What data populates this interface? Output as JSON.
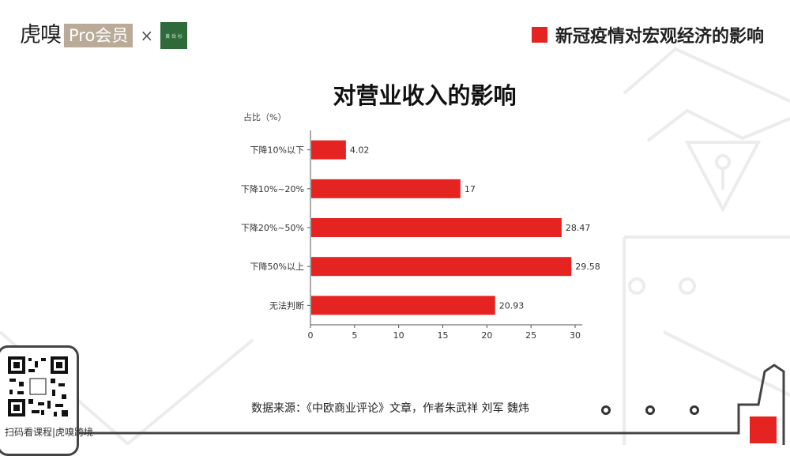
{
  "header": {
    "brand": "虎嗅",
    "badge": "Pro会员",
    "times": "×",
    "partner": "黄 岳 杉",
    "section_title": "新冠疫情对宏观经济的影响"
  },
  "chart_data": {
    "type": "bar",
    "orientation": "horizontal",
    "title": "对营业收入的影响",
    "ylabel": "占比（%）",
    "categories": [
      "下降10%以下",
      "下降10%~20%",
      "下降20%~50%",
      "下降50%以上",
      "无法判断"
    ],
    "values": [
      4.02,
      17,
      28.47,
      29.58,
      20.93
    ],
    "value_labels": [
      "4.02",
      "17",
      "28.47",
      "29.58",
      "20.93"
    ],
    "xlim": [
      0,
      30
    ],
    "xticks": [
      0,
      5,
      10,
      15,
      20,
      25,
      30
    ],
    "bar_color": "#e52421",
    "grid": false
  },
  "footer": {
    "source": "数据来源：《中欧商业评论》文章，作者朱武祥 刘军 魏炜",
    "qr_caption": "扫码看课程|虎嗅跨境"
  },
  "colors": {
    "accent": "#e52421",
    "badge": "#b9ab98",
    "partner": "#2f6a3b"
  }
}
